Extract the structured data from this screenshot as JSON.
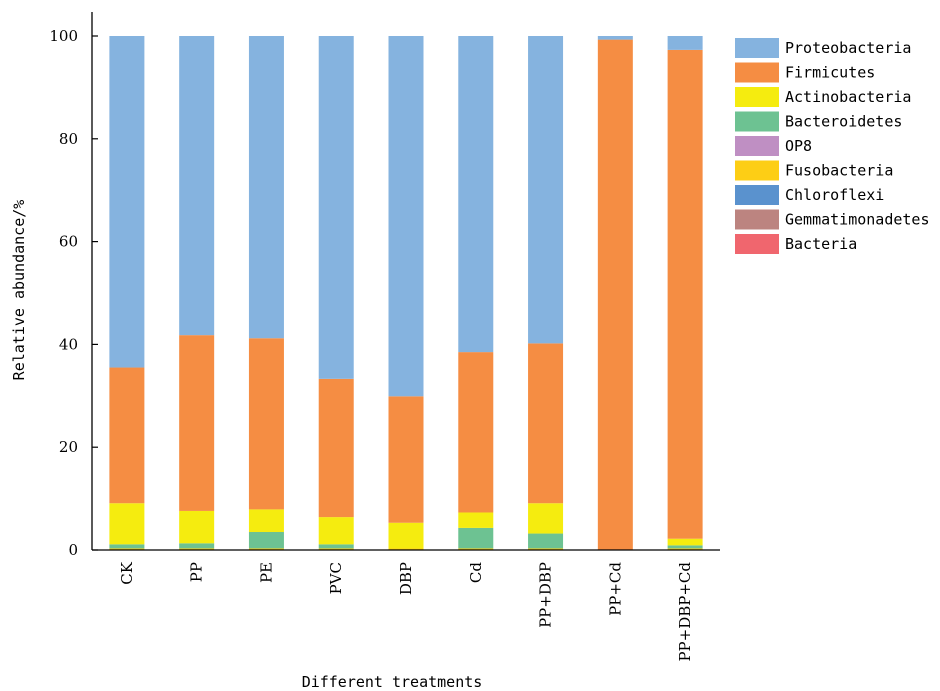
{
  "chart_data": {
    "type": "bar",
    "stacked": true,
    "xlabel": "Different treatments",
    "ylabel": "Relative abundance/%",
    "ylim": [
      0,
      100
    ],
    "yticks": [
      0,
      20,
      40,
      60,
      80,
      100
    ],
    "grid": false,
    "legend_position": "right",
    "categories": [
      "CK",
      "PP",
      "PE",
      "PVC",
      "DBP",
      "Cd",
      "PP+DBP",
      "PP+Cd",
      "PP+DBP+Cd"
    ],
    "series": [
      {
        "name": "Bacteria",
        "color": "#F0666E",
        "values": [
          0,
          0,
          0,
          0,
          0,
          0,
          0,
          0,
          0
        ]
      },
      {
        "name": "Gemmatimonadetes",
        "color": "#BC8480",
        "values": [
          0,
          0,
          0,
          0,
          0,
          0,
          0,
          0,
          0
        ]
      },
      {
        "name": "Chloroflexi",
        "color": "#5A92CE",
        "values": [
          0,
          0,
          0,
          0,
          0,
          0,
          0,
          0,
          0
        ]
      },
      {
        "name": "Fusobacteria",
        "color": "#FDCE15",
        "values": [
          0.3,
          0.3,
          0.3,
          0.3,
          0.3,
          0.3,
          0.3,
          0,
          0.3
        ]
      },
      {
        "name": "OP8",
        "color": "#BF8FC3",
        "values": [
          0,
          0,
          0,
          0,
          0,
          0,
          0,
          0,
          0
        ]
      },
      {
        "name": "Bacteroidetes",
        "color": "#6DC292",
        "values": [
          0.8,
          1.0,
          3.2,
          0.8,
          0,
          4.0,
          2.9,
          0,
          0.6
        ]
      },
      {
        "name": "Actinobacteria",
        "color": "#F5EC0F",
        "values": [
          8.0,
          6.3,
          4.4,
          5.3,
          5.0,
          3.0,
          5.9,
          0,
          1.3
        ]
      },
      {
        "name": "Firmicutes",
        "color": "#F58D43",
        "values": [
          26.4,
          34.2,
          33.3,
          26.9,
          24.6,
          31.2,
          31.1,
          99.3,
          95.1
        ]
      },
      {
        "name": "Proteobacteria",
        "color": "#85B3DF",
        "values": [
          64.5,
          58.2,
          58.8,
          66.7,
          70.1,
          61.5,
          59.8,
          0.7,
          2.7
        ]
      }
    ],
    "legend_order": [
      "Proteobacteria",
      "Firmicutes",
      "Actinobacteria",
      "Bacteroidetes",
      "OP8",
      "Fusobacteria",
      "Chloroflexi",
      "Gemmatimonadetes",
      "Bacteria"
    ]
  }
}
